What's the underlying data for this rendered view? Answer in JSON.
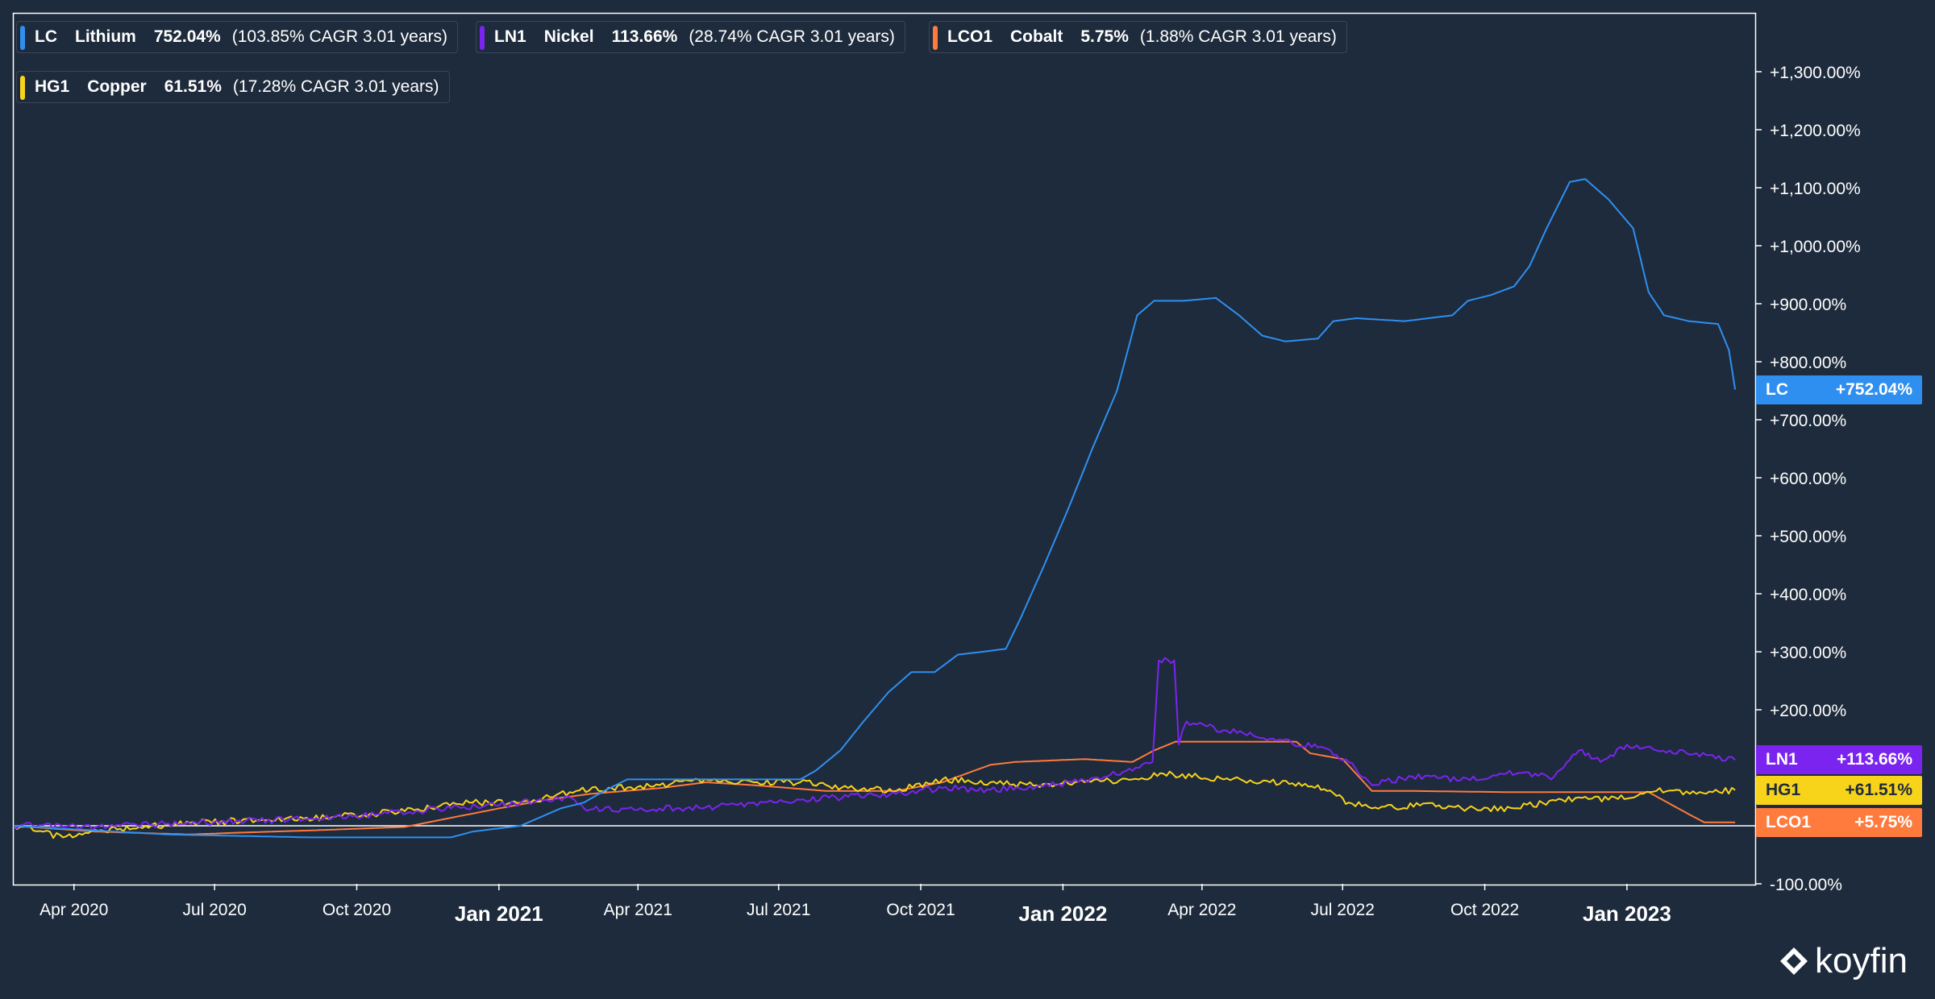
{
  "chart_data": {
    "type": "line",
    "y_unit": "%",
    "ylim": [
      -100,
      1400
    ],
    "y_ticks": [
      -100,
      0,
      100,
      200,
      300,
      400,
      500,
      600,
      700,
      800,
      900,
      1000,
      1100,
      1200,
      1300
    ],
    "y_tick_labels": [
      "-100.00%",
      "",
      "",
      "+200.00%",
      "+300.00%",
      "+400.00%",
      "+500.00%",
      "+600.00%",
      "+700.00%",
      "+800.00%",
      "+900.00%",
      "+1,000.00%",
      "+1,100.00%",
      "+1,200.00%",
      "+1,300.00%"
    ],
    "xlim": [
      "2020-02-22",
      "2023-03-25"
    ],
    "x_ticks": [
      {
        "date": "2020-04-01",
        "label": "Apr 2020",
        "bold": false
      },
      {
        "date": "2020-07-01",
        "label": "Jul 2020",
        "bold": false
      },
      {
        "date": "2020-10-01",
        "label": "Oct 2020",
        "bold": false
      },
      {
        "date": "2021-01-01",
        "label": "Jan 2021",
        "bold": true
      },
      {
        "date": "2021-04-01",
        "label": "Apr 2021",
        "bold": false
      },
      {
        "date": "2021-07-01",
        "label": "Jul 2021",
        "bold": false
      },
      {
        "date": "2021-10-01",
        "label": "Oct 2021",
        "bold": false
      },
      {
        "date": "2022-01-01",
        "label": "Jan 2022",
        "bold": true
      },
      {
        "date": "2022-04-01",
        "label": "Apr 2022",
        "bold": false
      },
      {
        "date": "2022-07-01",
        "label": "Jul 2022",
        "bold": false
      },
      {
        "date": "2022-10-01",
        "label": "Oct 2022",
        "bold": false
      },
      {
        "date": "2023-01-01",
        "label": "Jan 2023",
        "bold": true
      }
    ],
    "grid": false,
    "zero_line": true,
    "legend_position": "top-left",
    "series": [
      {
        "ticker": "LC",
        "name": "Lithium",
        "return": "752.04%",
        "cagr_text": "(103.85% CAGR 3.01 years)",
        "tag": "+752.04%",
        "last_value": 752.04,
        "color": "#2f8ff0",
        "tag_text_color": "#ffffff",
        "points": [
          [
            "2020-02-22",
            0
          ],
          [
            "2020-03-25",
            -5
          ],
          [
            "2020-06-01",
            -15
          ],
          [
            "2020-09-01",
            -20
          ],
          [
            "2020-12-01",
            -20
          ],
          [
            "2020-12-15",
            -10
          ],
          [
            "2021-01-15",
            0
          ],
          [
            "2021-02-10",
            30
          ],
          [
            "2021-02-25",
            40
          ],
          [
            "2021-03-10",
            60
          ],
          [
            "2021-03-25",
            80
          ],
          [
            "2021-04-10",
            80
          ],
          [
            "2021-05-20",
            80
          ],
          [
            "2021-07-15",
            80
          ],
          [
            "2021-07-25",
            95
          ],
          [
            "2021-08-10",
            130
          ],
          [
            "2021-08-25",
            180
          ],
          [
            "2021-09-10",
            230
          ],
          [
            "2021-09-25",
            265
          ],
          [
            "2021-10-10",
            265
          ],
          [
            "2021-10-25",
            295
          ],
          [
            "2021-11-10",
            300
          ],
          [
            "2021-11-25",
            305
          ],
          [
            "2021-12-05",
            360
          ],
          [
            "2021-12-20",
            450
          ],
          [
            "2022-01-05",
            550
          ],
          [
            "2022-01-20,",
            650
          ],
          [
            "2022-02-05",
            750
          ],
          [
            "2022-02-18",
            880
          ],
          [
            "2022-03-01",
            905
          ],
          [
            "2022-03-20",
            905
          ],
          [
            "2022-04-10",
            910
          ],
          [
            "2022-04-25",
            880
          ],
          [
            "2022-05-10",
            845
          ],
          [
            "2022-05-25",
            835
          ],
          [
            "2022-06-15",
            840
          ],
          [
            "2022-06-25",
            870
          ],
          [
            "2022-07-10",
            875
          ],
          [
            "2022-08-10",
            870
          ],
          [
            "2022-09-10",
            880
          ],
          [
            "2022-09-20",
            905
          ],
          [
            "2022-10-05",
            915
          ],
          [
            "2022-10-20",
            930
          ],
          [
            "2022-10-30",
            965
          ],
          [
            "2022-11-10",
            1030
          ],
          [
            "2022-11-25",
            1110
          ],
          [
            "2022-12-05",
            1115
          ],
          [
            "2022-12-20",
            1080
          ],
          [
            "2023-01-05",
            1030
          ],
          [
            "2023-01-15",
            920
          ],
          [
            "2023-01-25",
            880
          ],
          [
            "2023-02-10",
            870
          ],
          [
            "2023-03-01",
            865
          ],
          [
            "2023-03-08",
            820
          ],
          [
            "2023-03-12",
            752.04
          ]
        ]
      },
      {
        "ticker": "LN1",
        "name": "Nickel",
        "return": "113.66%",
        "cagr_text": "(28.74% CAGR 3.01 years)",
        "tag": "+113.66%",
        "last_value": 113.66,
        "color": "#7b24f0",
        "tag_text_color": "#ffffff",
        "points": [
          [
            "2020-02-22",
            0
          ],
          [
            "2020-04-15",
            -2
          ],
          [
            "2020-06-01",
            4
          ],
          [
            "2020-07-15",
            8
          ],
          [
            "2020-09-01",
            12
          ],
          [
            "2020-10-15",
            20
          ],
          [
            "2020-12-01",
            30
          ],
          [
            "2021-01-01",
            35
          ],
          [
            "2021-02-15",
            50
          ],
          [
            "2021-03-01",
            28
          ],
          [
            "2021-04-15",
            30
          ],
          [
            "2021-05-15",
            32
          ],
          [
            "2021-06-15",
            40
          ],
          [
            "2021-07-15",
            45
          ],
          [
            "2021-08-15",
            50
          ],
          [
            "2021-09-15",
            55
          ],
          [
            "2021-10-15",
            65
          ],
          [
            "2021-11-15",
            62
          ],
          [
            "2021-12-15",
            68
          ],
          [
            "2022-01-15",
            78
          ],
          [
            "2022-02-15",
            95
          ],
          [
            "2022-02-28",
            110
          ],
          [
            "2022-03-04",
            285
          ],
          [
            "2022-03-14",
            285
          ],
          [
            "2022-03-17",
            140
          ],
          [
            "2022-03-22",
            180
          ],
          [
            "2022-04-15",
            165
          ],
          [
            "2022-05-15",
            150
          ],
          [
            "2022-06-15",
            135
          ],
          [
            "2022-07-05",
            110
          ],
          [
            "2022-07-20",
            70
          ],
          [
            "2022-08-15",
            85
          ],
          [
            "2022-09-15",
            78
          ],
          [
            "2022-10-15",
            90
          ],
          [
            "2022-11-15",
            85
          ],
          [
            "2022-12-01",
            130
          ],
          [
            "2022-12-15",
            110
          ],
          [
            "2023-01-01",
            140
          ],
          [
            "2023-01-20",
            130
          ],
          [
            "2023-02-15",
            125
          ],
          [
            "2023-03-12",
            113.66
          ]
        ]
      },
      {
        "ticker": "LCO1",
        "name": "Cobalt",
        "return": "5.75%",
        "cagr_text": "(1.88% CAGR 3.01 years)",
        "tag": "+5.75%",
        "last_value": 5.75,
        "color": "#ff7a3d",
        "tag_text_color": "#ffffff",
        "points": [
          [
            "2020-02-22",
            0
          ],
          [
            "2020-04-15",
            -10
          ],
          [
            "2020-06-15",
            -15
          ],
          [
            "2020-07-15",
            -12
          ],
          [
            "2020-09-01",
            -8
          ],
          [
            "2020-11-01",
            -2
          ],
          [
            "2021-01-01",
            30
          ],
          [
            "2021-02-01",
            45
          ],
          [
            "2021-03-01",
            55
          ],
          [
            "2021-04-15",
            65
          ],
          [
            "2021-05-15",
            75
          ],
          [
            "2021-06-15",
            70
          ],
          [
            "2021-08-01",
            60
          ],
          [
            "2021-09-15",
            60
          ],
          [
            "2021-10-15",
            75
          ],
          [
            "2021-11-15",
            105
          ],
          [
            "2021-12-01",
            110
          ],
          [
            "2022-01-15",
            115
          ],
          [
            "2022-02-15",
            110
          ],
          [
            "2022-03-01",
            130
          ],
          [
            "2022-03-15",
            145
          ],
          [
            "2022-05-01",
            145
          ],
          [
            "2022-06-01",
            145
          ],
          [
            "2022-06-10",
            125
          ],
          [
            "2022-07-01",
            115
          ],
          [
            "2022-07-20",
            60
          ],
          [
            "2022-08-15",
            60
          ],
          [
            "2022-10-15",
            58
          ],
          [
            "2022-12-01",
            58
          ],
          [
            "2023-01-15",
            58
          ],
          [
            "2023-02-10",
            20
          ],
          [
            "2023-02-20",
            6
          ],
          [
            "2023-03-12",
            5.75
          ]
        ]
      },
      {
        "ticker": "HG1",
        "name": "Copper",
        "return": "61.51%",
        "cagr_text": "(17.28% CAGR 3.01 years)",
        "tag": "+61.51%",
        "last_value": 61.51,
        "color": "#f7d31a",
        "tag_text_color": "#1e2b3c",
        "points": [
          [
            "2020-02-22",
            0
          ],
          [
            "2020-03-25",
            -20
          ],
          [
            "2020-05-01",
            -5
          ],
          [
            "2020-06-15",
            5
          ],
          [
            "2020-08-01",
            10
          ],
          [
            "2020-09-15",
            15
          ],
          [
            "2020-11-01",
            25
          ],
          [
            "2020-12-15",
            40
          ],
          [
            "2021-01-15",
            40
          ],
          [
            "2021-02-20",
            60
          ],
          [
            "2021-03-15",
            65
          ],
          [
            "2021-04-15",
            70
          ],
          [
            "2021-05-10",
            80
          ],
          [
            "2021-06-15",
            75
          ],
          [
            "2021-07-15",
            75
          ],
          [
            "2021-08-15",
            65
          ],
          [
            "2021-09-15",
            60
          ],
          [
            "2021-10-15",
            80
          ],
          [
            "2021-11-15",
            75
          ],
          [
            "2021-12-15",
            70
          ],
          [
            "2022-01-15",
            75
          ],
          [
            "2022-02-15",
            80
          ],
          [
            "2022-03-07",
            90
          ],
          [
            "2022-04-15",
            80
          ],
          [
            "2022-05-15",
            75
          ],
          [
            "2022-06-15",
            70
          ],
          [
            "2022-07-05",
            40
          ],
          [
            "2022-07-20",
            30
          ],
          [
            "2022-08-20",
            35
          ],
          [
            "2022-09-20",
            30
          ],
          [
            "2022-10-20",
            30
          ],
          [
            "2022-11-20",
            45
          ],
          [
            "2022-12-20",
            45
          ],
          [
            "2023-01-20",
            60
          ],
          [
            "2023-02-15",
            55
          ],
          [
            "2023-03-12",
            61.51
          ]
        ]
      }
    ]
  },
  "brand": {
    "name": "koyfin"
  }
}
